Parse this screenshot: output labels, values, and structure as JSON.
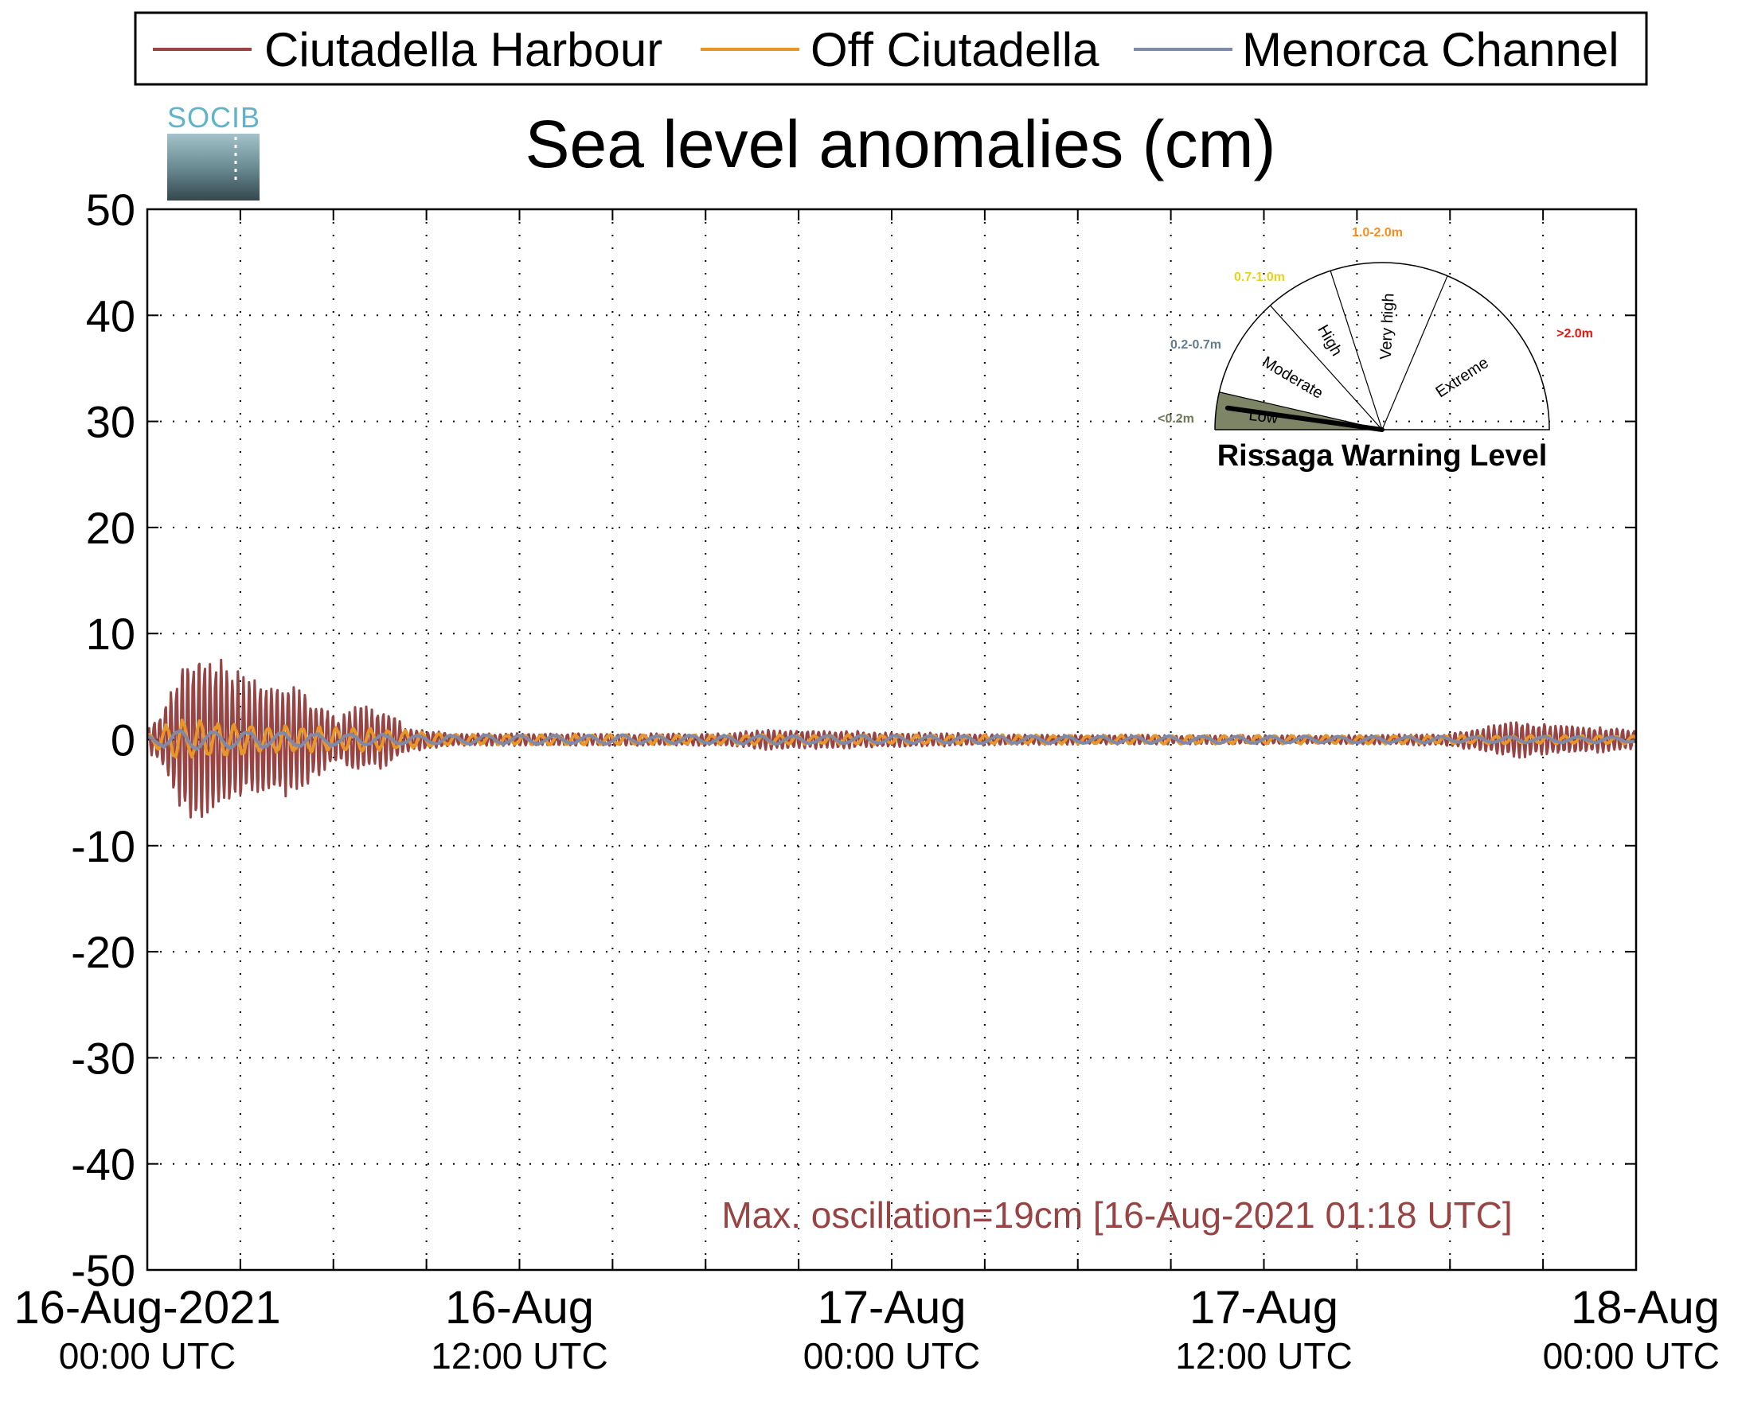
{
  "chart_data": {
    "type": "line",
    "title": "Sea level anomalies (cm)",
    "logo_text": "SOCIB",
    "ylim": [
      -50,
      50
    ],
    "yticks": [
      50,
      40,
      30,
      20,
      10,
      0,
      -10,
      -20,
      -30,
      -40,
      -50
    ],
    "xlim_hours": [
      0,
      48
    ],
    "xticks": [
      {
        "hours": 0,
        "date": "16-Aug-2021",
        "time": "00:00 UTC"
      },
      {
        "hours": 12,
        "date": "16-Aug",
        "time": "12:00 UTC"
      },
      {
        "hours": 24,
        "date": "17-Aug",
        "time": "00:00 UTC"
      },
      {
        "hours": 36,
        "date": "17-Aug",
        "time": "12:00 UTC"
      },
      {
        "hours": 48,
        "date": "18-Aug",
        "time": "00:00 UTC"
      }
    ],
    "grid": true,
    "legend_position": "top",
    "series": [
      {
        "name": "Ciutadella Harbour",
        "color": "#994444",
        "envelope": [
          {
            "hours": 0.0,
            "amplitude": 1.0
          },
          {
            "hours": 0.5,
            "amplitude": 3.0
          },
          {
            "hours": 1.3,
            "amplitude": 9.0
          },
          {
            "hours": 2.5,
            "amplitude": 7.5
          },
          {
            "hours": 3.2,
            "amplitude": 6.0
          },
          {
            "hours": 4.5,
            "amplitude": 5.5
          },
          {
            "hours": 5.5,
            "amplitude": 4.0
          },
          {
            "hours": 6.2,
            "amplitude": 2.0
          },
          {
            "hours": 6.7,
            "amplitude": 3.5
          },
          {
            "hours": 7.8,
            "amplitude": 3.0
          },
          {
            "hours": 8.3,
            "amplitude": 1.2
          },
          {
            "hours": 10.0,
            "amplitude": 0.6
          },
          {
            "hours": 18.5,
            "amplitude": 0.6
          },
          {
            "hours": 20.0,
            "amplitude": 1.0
          },
          {
            "hours": 28.0,
            "amplitude": 0.5
          },
          {
            "hours": 38.0,
            "amplitude": 0.4
          },
          {
            "hours": 42.0,
            "amplitude": 0.6
          },
          {
            "hours": 44.0,
            "amplitude": 1.8
          },
          {
            "hours": 45.5,
            "amplitude": 1.5
          },
          {
            "hours": 48.0,
            "amplitude": 1.0
          }
        ]
      },
      {
        "name": "Off Ciutadella",
        "color": "#e8952a",
        "envelope": [
          {
            "hours": 0.0,
            "amplitude": 0.5
          },
          {
            "hours": 1.0,
            "amplitude": 2.0
          },
          {
            "hours": 3.0,
            "amplitude": 1.5
          },
          {
            "hours": 6.0,
            "amplitude": 1.2
          },
          {
            "hours": 8.0,
            "amplitude": 1.0
          },
          {
            "hours": 10.0,
            "amplitude": 0.5
          },
          {
            "hours": 44.0,
            "amplitude": 0.4
          },
          {
            "hours": 48.0,
            "amplitude": 0.4
          }
        ]
      },
      {
        "name": "Menorca Channel",
        "color": "#7f8aa8",
        "envelope": [
          {
            "hours": 0.0,
            "amplitude": 0.5
          },
          {
            "hours": 1.0,
            "amplitude": 1.0
          },
          {
            "hours": 4.0,
            "amplitude": 0.8
          },
          {
            "hours": 8.0,
            "amplitude": 0.5
          },
          {
            "hours": 48.0,
            "amplitude": 0.3
          }
        ]
      }
    ],
    "annotation": "Max. oscillation=19cm [16-Aug-2021 01:18 UTC]",
    "annotation_color": "#994444",
    "warning_gauge": {
      "title": "Rissaga Warning Level",
      "current_level": "Low",
      "levels": [
        {
          "name": "Low",
          "range": "<0.2m",
          "range_color": "#6b7a55"
        },
        {
          "name": "Moderate",
          "range": "0.2-0.7m",
          "range_color": "#5f7f8f"
        },
        {
          "name": "High",
          "range": "0.7-1.0m",
          "range_color": "#e8d21a"
        },
        {
          "name": "Very high",
          "range": "1.0-2.0m",
          "range_color": "#ff8c1a"
        },
        {
          "name": "Extreme",
          "range": ">2.0m",
          "range_color": "#e8140a"
        }
      ],
      "low_fill": "#7d8566"
    }
  }
}
